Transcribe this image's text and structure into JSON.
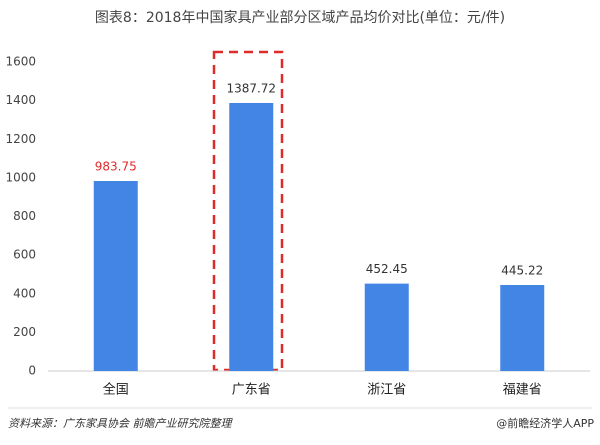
{
  "chart_data": {
    "type": "bar",
    "title": "图表8：2018年中国家具产业部分区域产品均价对比(单位：元/件)",
    "categories": [
      "全国",
      "广东省",
      "浙江省",
      "福建省"
    ],
    "values": [
      983.75,
      1387.72,
      452.45,
      445.22
    ],
    "color": "#4285e4",
    "value_label_colors": [
      "#e02b2b",
      "#333333",
      "#333333",
      "#333333"
    ],
    "ylim": [
      0,
      1600
    ],
    "yticks": [
      0,
      200,
      400,
      600,
      800,
      1000,
      1200,
      1400,
      1600
    ],
    "grid": false,
    "source": "资料来源：广东家具协会 前瞻产业研究院整理",
    "watermark": "@前瞻经济学人APP"
  }
}
